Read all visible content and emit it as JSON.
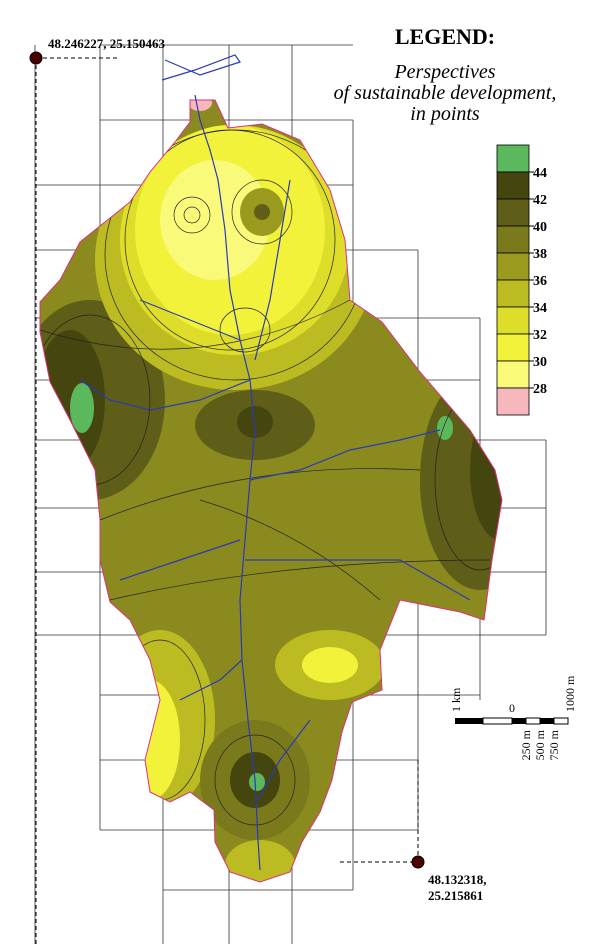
{
  "map": {
    "corner_top": "48.246227, 25.150463",
    "corner_bottom": [
      "48.132318,",
      "25.215861"
    ],
    "legend": {
      "title": "LEGEND:",
      "subtitle": [
        "Perspectives",
        "of sustainable development,",
        "in points"
      ],
      "ticks": [
        44,
        42,
        40,
        38,
        36,
        34,
        32,
        30,
        28
      ],
      "colors": [
        "#5cb85c",
        "#45450f",
        "#5e5e18",
        "#7a7a1c",
        "#9a9a1e",
        "#bcbc22",
        "#dede2a",
        "#f2f23a",
        "#fafa7a",
        "#f6b8bc"
      ]
    },
    "scale": {
      "left": "1 km",
      "zero": "0",
      "right": "1000 m",
      "steps": [
        "250 m",
        "500 m",
        "750 m"
      ]
    }
  }
}
